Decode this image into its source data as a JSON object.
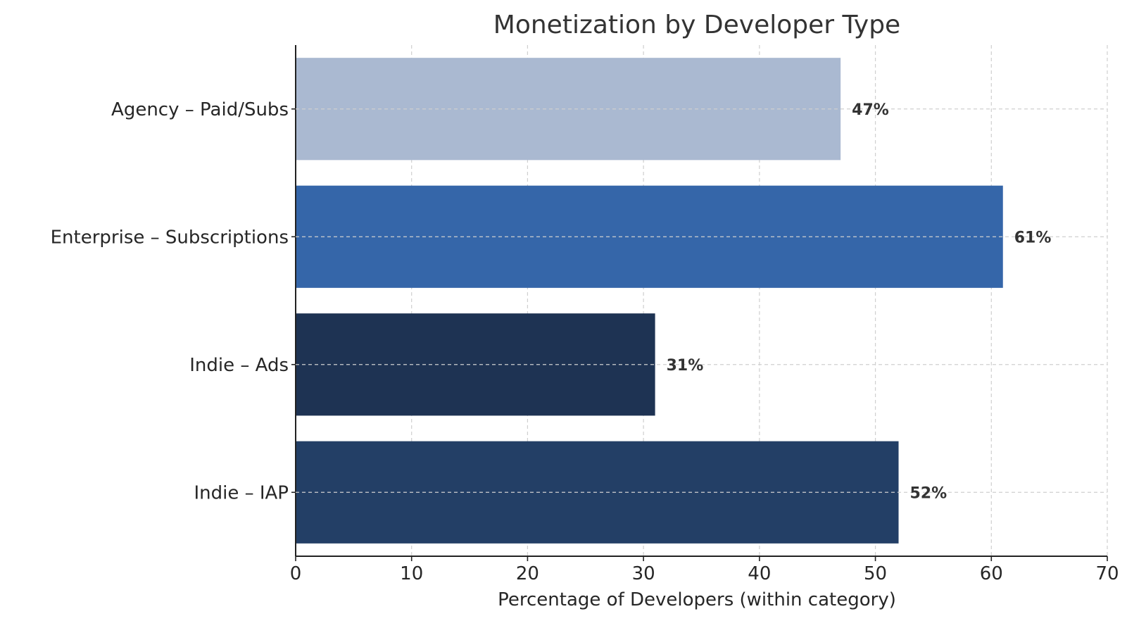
{
  "chart_data": {
    "type": "bar",
    "orientation": "horizontal",
    "title": "Monetization by Developer Type",
    "xlabel": "Percentage of Developers (within category)",
    "ylabel": "",
    "xlim": [
      0,
      70
    ],
    "xticks": [
      0,
      10,
      20,
      30,
      40,
      50,
      60,
      70
    ],
    "xtick_labels": [
      "0",
      "10",
      "20",
      "30",
      "40",
      "50",
      "60",
      "70"
    ],
    "grid": true,
    "categories": [
      "Agency – Paid/Subs",
      "Enterprise – Subscriptions",
      "Indie – Ads",
      "Indie – IAP"
    ],
    "values": [
      47,
      61,
      31,
      52
    ],
    "value_labels": [
      "47%",
      "61%",
      "31%",
      "52%"
    ],
    "colors": [
      "#aab9d1",
      "#3566a9",
      "#1e3353",
      "#233f66"
    ]
  }
}
